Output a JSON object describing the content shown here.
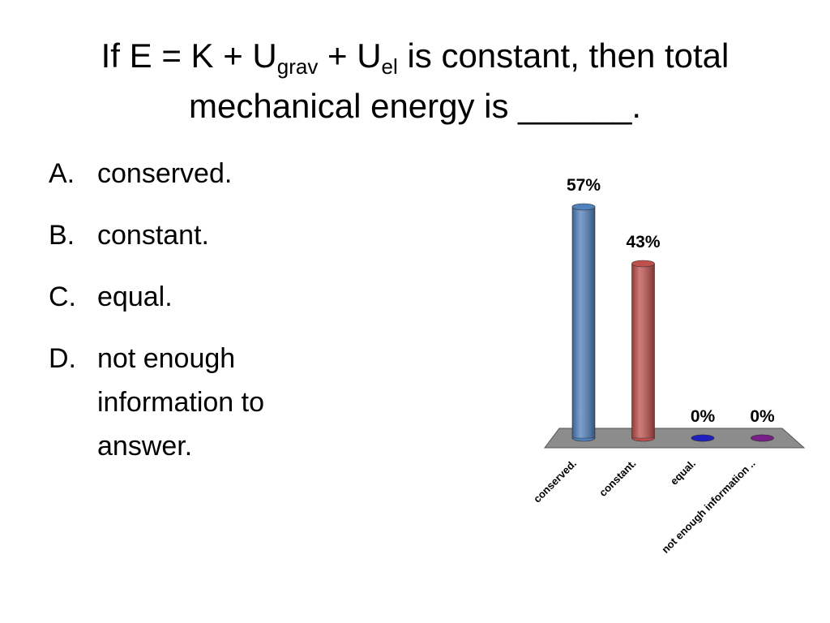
{
  "title": {
    "parts": [
      "If E = K + U",
      "grav",
      " + U",
      "el",
      " is constant, then total mechanical energy is ______."
    ]
  },
  "list": [
    {
      "marker": "A.",
      "text": "conserved."
    },
    {
      "marker": "B.",
      "text": "constant."
    },
    {
      "marker": "C.",
      "text": "equal."
    },
    {
      "marker": "D.",
      "text": "not enough information to answer."
    }
  ],
  "chart_data": {
    "type": "bar",
    "categories": [
      "conserved.",
      "constant.",
      "equal.",
      "not enough information .."
    ],
    "values": [
      57,
      43,
      0,
      0
    ],
    "value_labels": [
      "57%",
      "43%",
      "0%",
      "0%"
    ],
    "colors": [
      "#4f81bd",
      "#c0504d",
      "#1f1fbf",
      "#7a1f8a"
    ]
  }
}
